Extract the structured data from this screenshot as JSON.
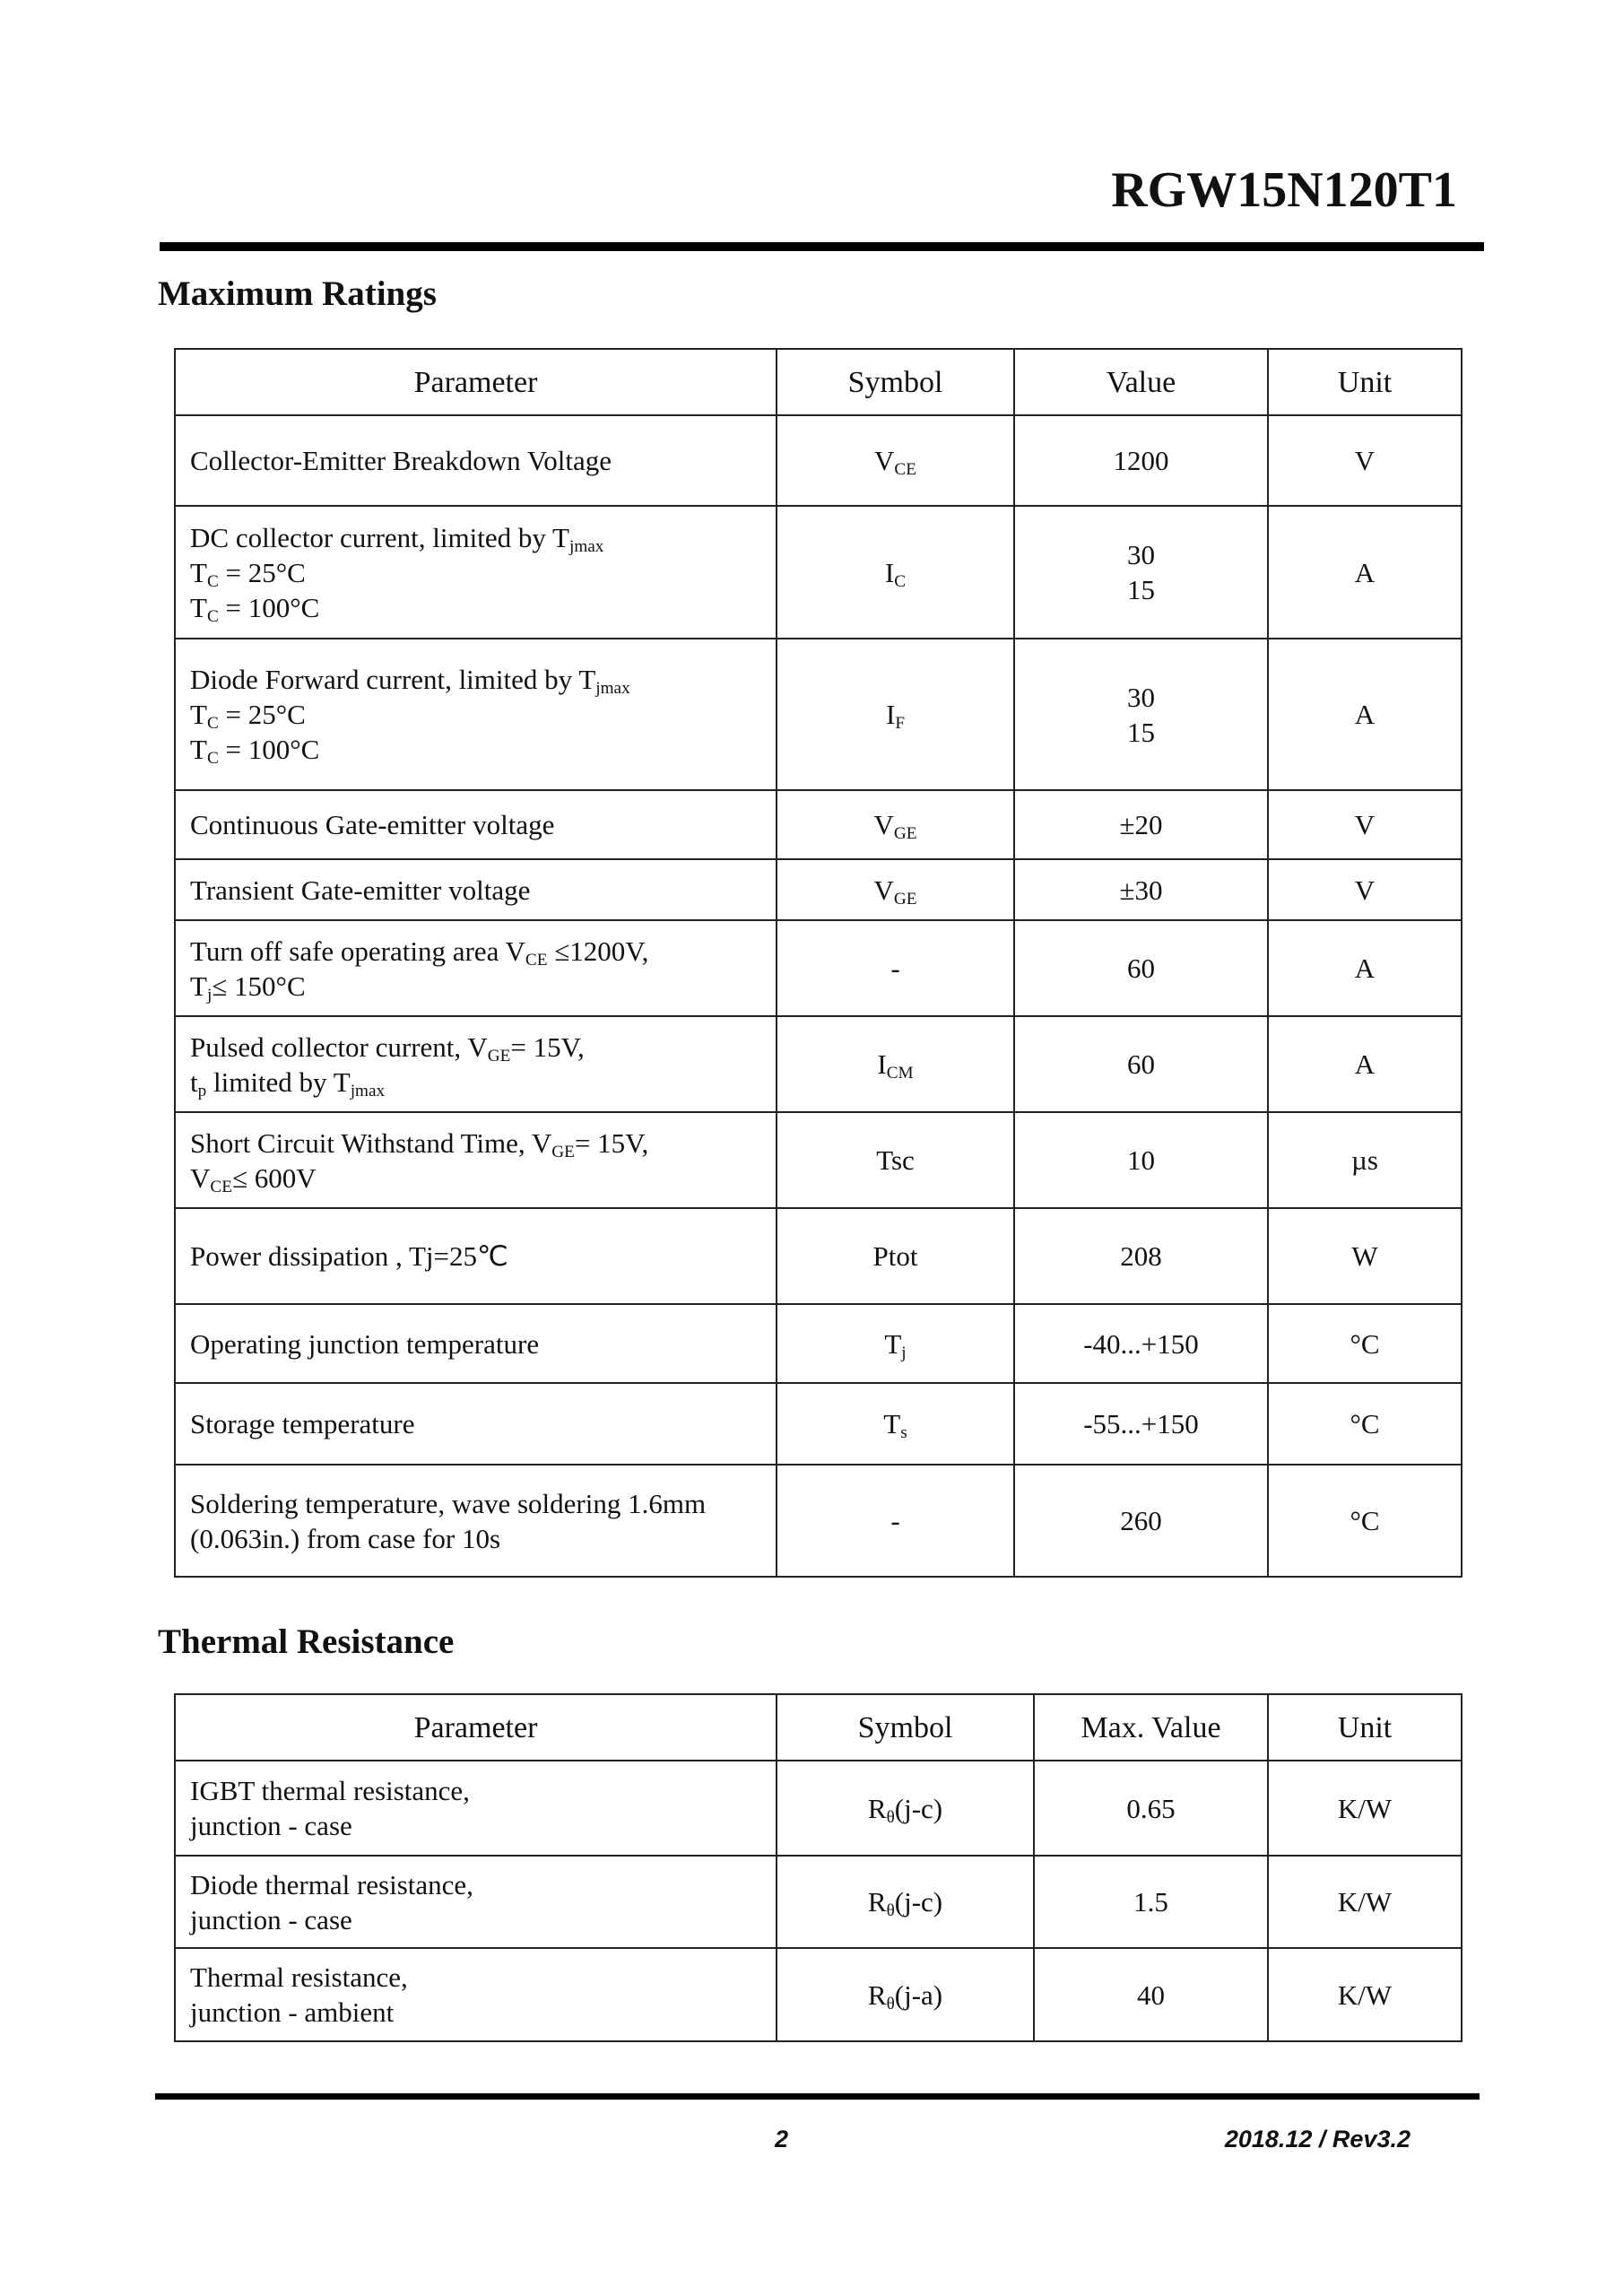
{
  "header": {
    "part_number": "RGW15N120T1"
  },
  "max_ratings": {
    "title": "Maximum Ratings",
    "columns": [
      "Parameter",
      "Symbol",
      "Value",
      "Unit"
    ],
    "rows": [
      {
        "param": [
          [
            {
              "t": "Collector-Emitter Breakdown Voltage"
            }
          ]
        ],
        "symbol": [
          [
            {
              "t": "V"
            },
            {
              "s": "CE"
            }
          ]
        ],
        "value": [
          "1200"
        ],
        "unit": "V"
      },
      {
        "param": [
          [
            {
              "t": "DC collector current, limited by T"
            },
            {
              "s": "jmax"
            }
          ],
          [
            {
              "t": "T"
            },
            {
              "s": "C"
            },
            {
              "t": " = 25°C"
            }
          ],
          [
            {
              "t": "T"
            },
            {
              "s": "C"
            },
            {
              "t": " = 100°C"
            }
          ]
        ],
        "symbol": [
          [
            {
              "t": "I"
            },
            {
              "s": "C"
            }
          ]
        ],
        "value": [
          "30",
          "15"
        ],
        "unit": "A"
      },
      {
        "param": [
          [
            {
              "t": "Diode Forward current, limited by T"
            },
            {
              "s": "jmax"
            }
          ],
          [
            {
              "t": "T"
            },
            {
              "s": "C"
            },
            {
              "t": " = 25°C"
            }
          ],
          [
            {
              "t": "T"
            },
            {
              "s": "C"
            },
            {
              "t": " = 100°C"
            }
          ]
        ],
        "symbol": [
          [
            {
              "t": "I"
            },
            {
              "s": "F"
            }
          ]
        ],
        "value": [
          "30",
          "15"
        ],
        "unit": "A"
      },
      {
        "param": [
          [
            {
              "t": "Continuous Gate-emitter voltage"
            }
          ]
        ],
        "symbol": [
          [
            {
              "t": "V"
            },
            {
              "s": "GE"
            }
          ]
        ],
        "value": [
          "±20"
        ],
        "unit": "V"
      },
      {
        "param": [
          [
            {
              "t": "Transient Gate-emitter voltage"
            }
          ]
        ],
        "symbol": [
          [
            {
              "t": "V"
            },
            {
              "s": "GE"
            }
          ]
        ],
        "value": [
          "±30"
        ],
        "unit": "V"
      },
      {
        "param": [
          [
            {
              "t": "Turn off safe operating area V"
            },
            {
              "s": "CE"
            },
            {
              "t": " ≤1200V,"
            }
          ],
          [
            {
              "t": "T"
            },
            {
              "s": "j"
            },
            {
              "t": "≤ 150°C"
            }
          ]
        ],
        "symbol": [
          [
            {
              "t": "-"
            }
          ]
        ],
        "value": [
          "60"
        ],
        "unit": "A"
      },
      {
        "param": [
          [
            {
              "t": "Pulsed collector current, V"
            },
            {
              "s": "GE"
            },
            {
              "t": "= 15V,"
            }
          ],
          [
            {
              "t": " t"
            },
            {
              "s": "p"
            },
            {
              "t": " limited by  T"
            },
            {
              "s": "jmax"
            }
          ]
        ],
        "symbol": [
          [
            {
              "t": "I"
            },
            {
              "s": "CM"
            }
          ]
        ],
        "value": [
          "60"
        ],
        "unit": "A"
      },
      {
        "param": [
          [
            {
              "t": "Short Circuit Withstand Time, V"
            },
            {
              "s": "GE"
            },
            {
              "t": "= 15V,"
            }
          ],
          [
            {
              "t": "V"
            },
            {
              "s": "CE"
            },
            {
              "t": "≤ 600V"
            }
          ]
        ],
        "symbol": [
          [
            {
              "t": "Tsc"
            }
          ]
        ],
        "value": [
          "10"
        ],
        "unit": "µs"
      },
      {
        "param": [
          [
            {
              "t": "Power dissipation , Tj=25℃"
            }
          ]
        ],
        "symbol": [
          [
            {
              "t": "Ptot"
            }
          ]
        ],
        "value": [
          "208"
        ],
        "unit": "W"
      },
      {
        "param": [
          [
            {
              "t": "Operating junction temperature"
            }
          ]
        ],
        "symbol": [
          [
            {
              "t": "T"
            },
            {
              "s": "j"
            }
          ]
        ],
        "value": [
          "-40...+150"
        ],
        "unit": "°C"
      },
      {
        "param": [
          [
            {
              "t": "Storage temperature"
            }
          ]
        ],
        "symbol": [
          [
            {
              "t": "T"
            },
            {
              "s": "s"
            }
          ]
        ],
        "value": [
          "-55...+150"
        ],
        "unit": "°C"
      },
      {
        "param": [
          [
            {
              "t": "Soldering temperature, wave soldering 1.6mm"
            }
          ],
          [
            {
              "t": "(0.063in.) from case for 10s"
            }
          ]
        ],
        "symbol": [
          [
            {
              "t": "-"
            }
          ]
        ],
        "value": [
          "260"
        ],
        "unit": "°C"
      }
    ]
  },
  "thermal": {
    "title": "Thermal Resistance",
    "columns": [
      "Parameter",
      "Symbol",
      "Max. Value",
      "Unit"
    ],
    "rows": [
      {
        "param": [
          [
            {
              "t": "IGBT thermal resistance,"
            }
          ],
          [
            {
              "t": "junction - case"
            }
          ]
        ],
        "symbol": [
          [
            {
              "t": "R"
            },
            {
              "s": "θ"
            },
            {
              "t": "(j-c)"
            }
          ]
        ],
        "value": [
          "0.65"
        ],
        "unit": "K/W"
      },
      {
        "param": [
          [
            {
              "t": "Diode thermal resistance,"
            }
          ],
          [
            {
              "t": "junction - case"
            }
          ]
        ],
        "symbol": [
          [
            {
              "t": "R"
            },
            {
              "s": "θ"
            },
            {
              "t": "(j-c)"
            }
          ]
        ],
        "value": [
          "1.5"
        ],
        "unit": "K/W"
      },
      {
        "param": [
          [
            {
              "t": "Thermal resistance,"
            }
          ],
          [
            {
              "t": "junction - ambient"
            }
          ]
        ],
        "symbol": [
          [
            {
              "t": "R"
            },
            {
              "s": "θ"
            },
            {
              "t": "(j-a)"
            }
          ]
        ],
        "value": [
          "40"
        ],
        "unit": "K/W"
      }
    ]
  },
  "footer": {
    "page_number": "2",
    "revision": "2018.12 / Rev3.2"
  }
}
